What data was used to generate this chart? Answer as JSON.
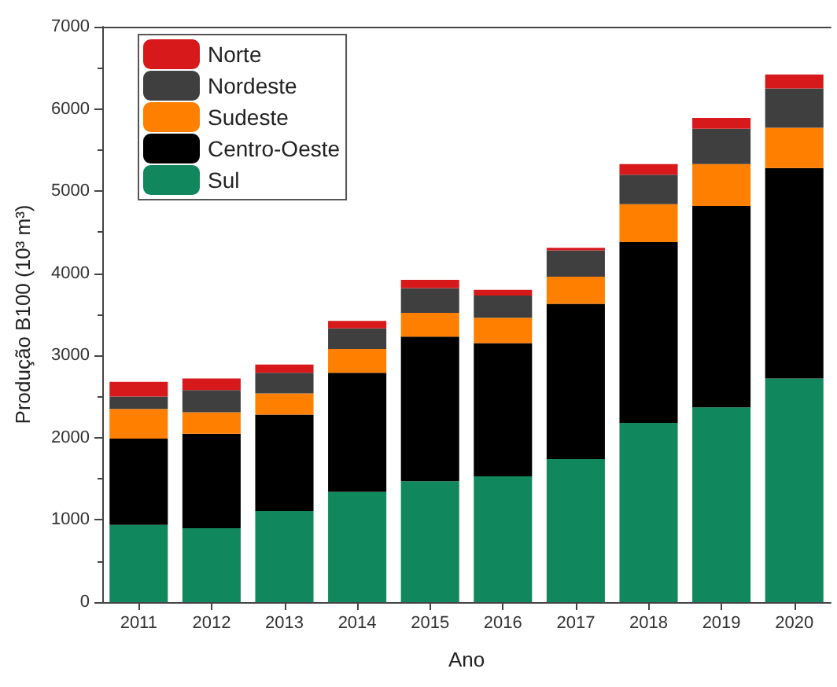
{
  "chart_data": {
    "type": "bar",
    "stacked": true,
    "xlabel": "Ano",
    "ylabel": "Produção B100 (10³ m³)",
    "categories": [
      "2011",
      "2012",
      "2013",
      "2014",
      "2015",
      "2016",
      "2017",
      "2018",
      "2019",
      "2020"
    ],
    "series": [
      {
        "name": "Sul",
        "color": "#11875d",
        "values": [
          940,
          900,
          1110,
          1340,
          1470,
          1530,
          1740,
          2180,
          2370,
          2720
        ]
      },
      {
        "name": "Centro-Oeste",
        "color": "#000000",
        "values": [
          1050,
          1150,
          1170,
          1450,
          1760,
          1620,
          1890,
          2200,
          2450,
          2560
        ]
      },
      {
        "name": "Sudeste",
        "color": "#ff7f00",
        "values": [
          360,
          260,
          260,
          290,
          290,
          310,
          330,
          460,
          510,
          490
        ]
      },
      {
        "name": "Nordeste",
        "color": "#3f3f3f",
        "values": [
          150,
          270,
          250,
          250,
          300,
          270,
          320,
          360,
          430,
          480
        ]
      },
      {
        "name": "Norte",
        "color": "#d7191c",
        "values": [
          180,
          140,
          100,
          90,
          100,
          70,
          30,
          130,
          130,
          170
        ]
      }
    ],
    "ylim": [
      0,
      7000
    ],
    "yticks": [
      0,
      1000,
      2000,
      3000,
      4000,
      5000,
      6000,
      7000
    ],
    "grid": false,
    "legend": "top left"
  }
}
